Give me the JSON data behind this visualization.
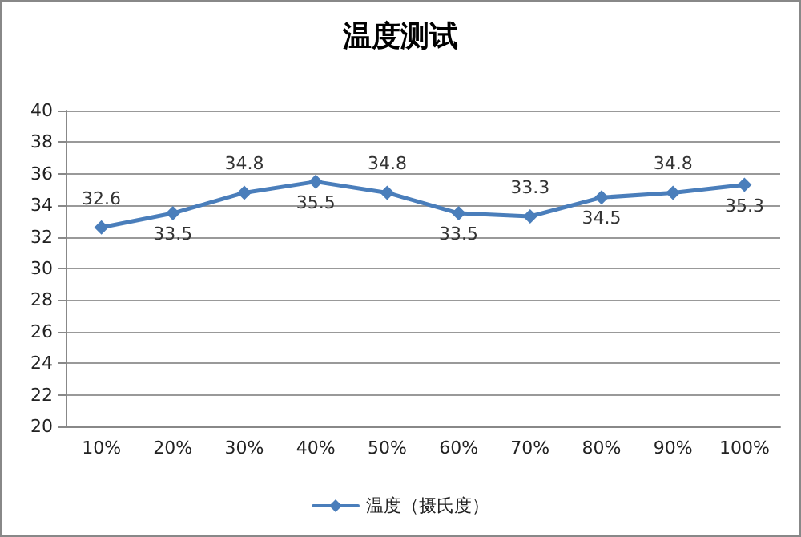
{
  "chart_data": {
    "type": "line",
    "title": "温度测试",
    "categories": [
      "10%",
      "20%",
      "30%",
      "40%",
      "50%",
      "60%",
      "70%",
      "80%",
      "90%",
      "100%"
    ],
    "series": [
      {
        "name": "温度（摄氏度）",
        "color": "#4a7ebb",
        "values": [
          32.6,
          33.5,
          34.8,
          35.5,
          34.8,
          33.5,
          33.3,
          34.5,
          34.8,
          35.3
        ]
      }
    ],
    "ylim": [
      20,
      40
    ],
    "yticks": [
      20,
      22,
      24,
      26,
      28,
      30,
      32,
      34,
      36,
      38,
      40
    ],
    "grid": "y",
    "legend": "bottom",
    "marker": "diamond",
    "line_style": "solid",
    "data_labels": true
  }
}
